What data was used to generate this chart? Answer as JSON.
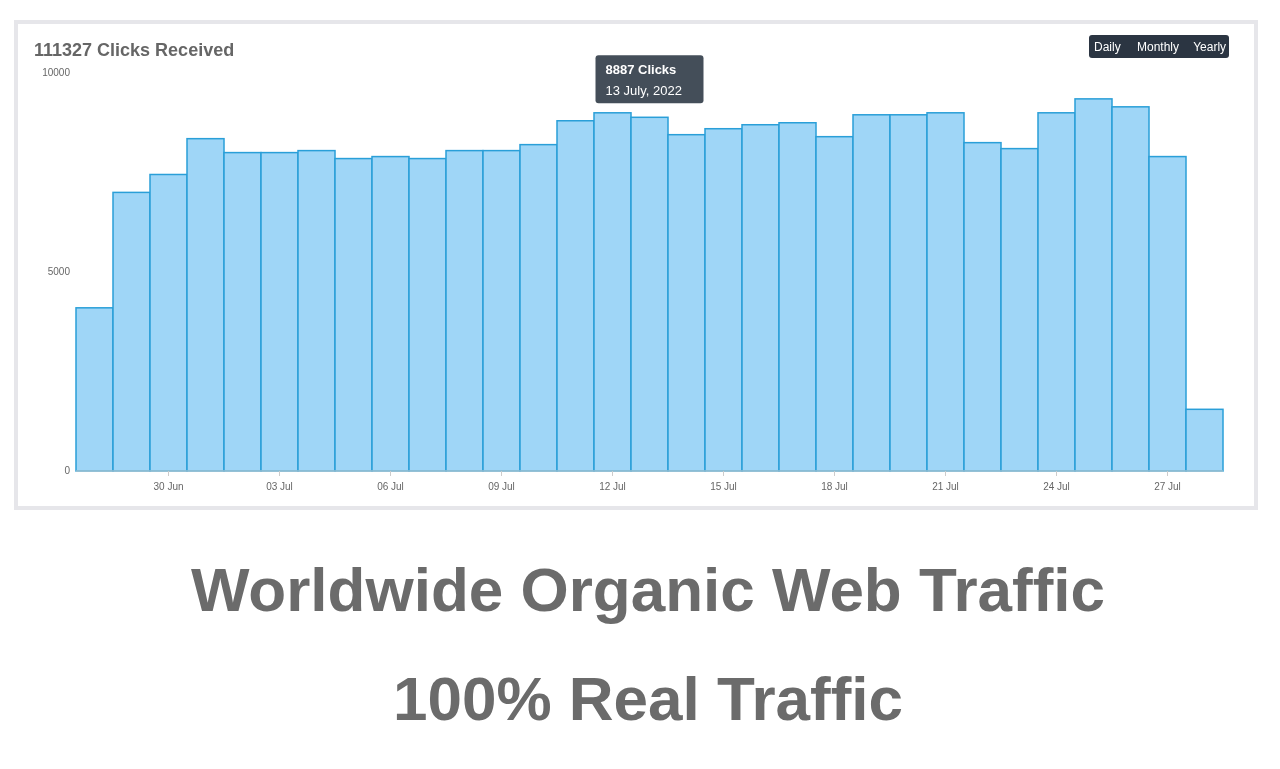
{
  "chart_data": {
    "type": "bar",
    "title": "Worldwide Organic Web Traffic",
    "subtitle": "100% Real Traffic",
    "x": [
      "2022-06-28",
      "2022-06-29",
      "2022-06-30",
      "2022-07-01",
      "2022-07-02",
      "2022-07-03",
      "2022-07-04",
      "2022-07-05",
      "2022-07-06",
      "2022-07-07",
      "2022-07-08",
      "2022-07-09",
      "2022-07-10",
      "2022-07-11",
      "2022-07-12",
      "2022-07-13",
      "2022-07-14",
      "2022-07-15",
      "2022-07-16",
      "2022-07-17",
      "2022-07-18",
      "2022-07-19",
      "2022-07-20",
      "2022-07-21",
      "2022-07-22",
      "2022-07-23",
      "2022-07-24",
      "2022-07-25",
      "2022-07-26",
      "2022-07-27",
      "2022-07-28"
    ],
    "values": [
      4100,
      7000,
      7450,
      8350,
      8000,
      8000,
      8050,
      7850,
      7900,
      7850,
      8050,
      8050,
      8200,
      8800,
      9000,
      8887,
      8450,
      8600,
      8700,
      8750,
      8400,
      8950,
      8950,
      9000,
      8250,
      8100,
      9000,
      9350,
      9150,
      7900,
      1550
    ],
    "color": "#9fd6f7",
    "xlim": [
      "2022-06-27T12:00",
      "2022-07-28T12:00"
    ],
    "xticks": [
      {
        "value": "2022-06-30",
        "label": "30 Jun"
      },
      {
        "value": "2022-07-03",
        "label": "03 Jul"
      },
      {
        "value": "2022-07-06",
        "label": "06 Jul"
      },
      {
        "value": "2022-07-09",
        "label": "09 Jul"
      },
      {
        "value": "2022-07-12",
        "label": "12 Jul"
      },
      {
        "value": "2022-07-15",
        "label": "15 Jul"
      },
      {
        "value": "2022-07-18",
        "label": "18 Jul"
      },
      {
        "value": "2022-07-21",
        "label": "21 Jul"
      },
      {
        "value": "2022-07-24",
        "label": "24 Jul"
      },
      {
        "value": "2022-07-27",
        "label": "27 Jul"
      }
    ],
    "ylim": [
      0,
      10000
    ],
    "yticks": [
      0,
      5000,
      10000
    ],
    "grid": false,
    "annotations": [
      "111327 Clicks Received",
      "Daily",
      "Monthly",
      "Yearly",
      {
        "text": "8887 Clicks\n13 July, 2022",
        "x": "2022-07-13",
        "y": 8887
      }
    ]
  }
}
